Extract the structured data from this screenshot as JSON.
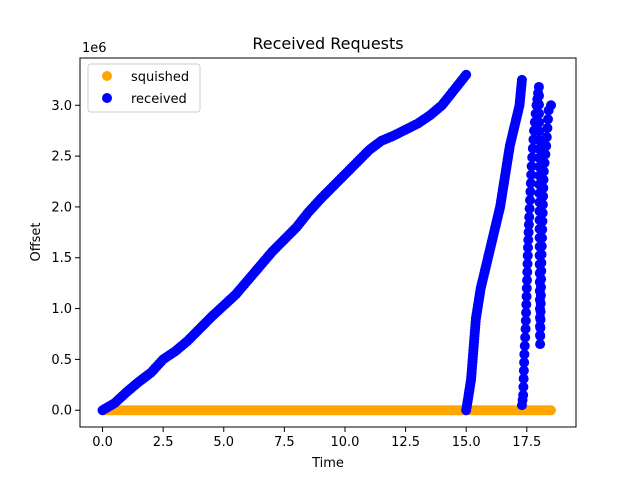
{
  "chart_data": {
    "type": "scatter",
    "title": "Received Requests",
    "xlabel": "Time",
    "ylabel": "Offset",
    "y_scale_label": "1e6",
    "xlim": [
      -0.93,
      19.53
    ],
    "ylim": [
      -0.165,
      3.465
    ],
    "y_multiplier": 1000000,
    "x_ticks": [
      0.0,
      2.5,
      5.0,
      7.5,
      10.0,
      12.5,
      15.0,
      17.5
    ],
    "x_tick_labels": [
      "0.0",
      "2.5",
      "5.0",
      "7.5",
      "10.0",
      "12.5",
      "15.0",
      "17.5"
    ],
    "y_ticks": [
      0.0,
      0.5,
      1.0,
      1.5,
      2.0,
      2.5,
      3.0
    ],
    "y_tick_labels": [
      "0.0",
      "0.5",
      "1.0",
      "1.5",
      "2.0",
      "2.5",
      "3.0"
    ],
    "grid": false,
    "legend_position": "top-left",
    "series": [
      {
        "name": "squished",
        "color": "#ffa500",
        "x_range": [
          0.1,
          18.5
        ],
        "y_constant": 0.0
      },
      {
        "name": "received",
        "color": "#0000ff",
        "segments": [
          {
            "points": [
              [
                0.0,
                0.0
              ],
              [
                0.5,
                0.07
              ],
              [
                1.0,
                0.18
              ],
              [
                1.5,
                0.28
              ],
              [
                2.0,
                0.37
              ],
              [
                2.5,
                0.5
              ],
              [
                3.0,
                0.58
              ],
              [
                3.5,
                0.68
              ],
              [
                4.0,
                0.8
              ],
              [
                4.5,
                0.92
              ],
              [
                5.0,
                1.03
              ],
              [
                5.5,
                1.14
              ],
              [
                6.0,
                1.28
              ],
              [
                6.5,
                1.42
              ],
              [
                7.0,
                1.56
              ],
              [
                7.5,
                1.68
              ],
              [
                8.0,
                1.8
              ],
              [
                8.5,
                1.95
              ],
              [
                9.0,
                2.08
              ],
              [
                9.5,
                2.2
              ],
              [
                10.0,
                2.32
              ],
              [
                10.5,
                2.44
              ],
              [
                11.0,
                2.56
              ],
              [
                11.5,
                2.65
              ],
              [
                12.0,
                2.7
              ],
              [
                12.5,
                2.76
              ],
              [
                13.0,
                2.82
              ],
              [
                13.5,
                2.9
              ],
              [
                14.0,
                3.0
              ],
              [
                14.5,
                3.15
              ],
              [
                15.0,
                3.3
              ]
            ]
          },
          {
            "points": [
              [
                15.0,
                0.0
              ],
              [
                15.2,
                0.3
              ],
              [
                15.4,
                0.9
              ],
              [
                15.6,
                1.2
              ],
              [
                15.8,
                1.4
              ],
              [
                16.0,
                1.6
              ],
              [
                16.2,
                1.8
              ],
              [
                16.4,
                2.0
              ],
              [
                16.6,
                2.3
              ],
              [
                16.8,
                2.6
              ],
              [
                17.0,
                2.8
              ],
              [
                17.2,
                3.0
              ],
              [
                17.3,
                3.25
              ]
            ]
          },
          {
            "points": [
              [
                17.3,
                0.05
              ],
              [
                17.35,
                0.15
              ],
              [
                17.4,
                0.55
              ],
              [
                17.45,
                0.8
              ],
              [
                17.5,
                1.2
              ],
              [
                17.55,
                1.6
              ],
              [
                17.6,
                1.9
              ],
              [
                17.7,
                2.4
              ],
              [
                17.8,
                2.75
              ],
              [
                17.9,
                3.0
              ],
              [
                18.0,
                3.18
              ],
              [
                18.05,
                0.65
              ],
              [
                18.1,
                1.45
              ],
              [
                18.2,
                2.35
              ],
              [
                18.3,
                2.6
              ],
              [
                18.4,
                2.95
              ],
              [
                18.5,
                3.0
              ]
            ]
          }
        ]
      }
    ]
  }
}
